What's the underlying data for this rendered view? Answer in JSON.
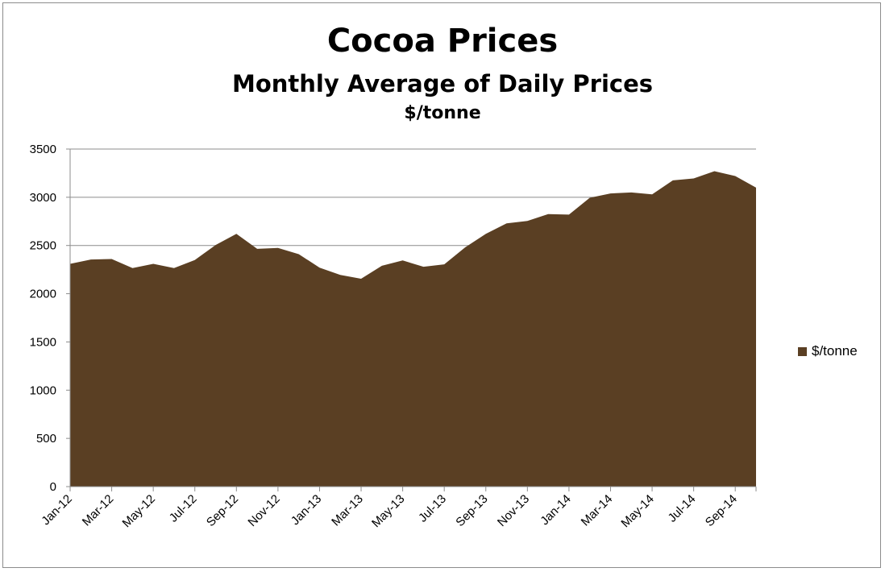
{
  "chart_data": {
    "type": "area",
    "title": "Cocoa Prices",
    "subtitle": "Monthly Average of Daily Prices",
    "subtitle2": "$/tonne",
    "ylim": [
      0,
      3500
    ],
    "yticks": [
      0,
      500,
      1000,
      1500,
      2000,
      2500,
      3000,
      3500
    ],
    "grid": true,
    "legend_position": "right",
    "color": "#5a3f23",
    "x": [
      "Jan-12",
      "Feb-12",
      "Mar-12",
      "Apr-12",
      "May-12",
      "Jun-12",
      "Jul-12",
      "Aug-12",
      "Sep-12",
      "Oct-12",
      "Nov-12",
      "Dec-12",
      "Jan-13",
      "Feb-13",
      "Mar-13",
      "Apr-13",
      "May-13",
      "Jun-13",
      "Jul-13",
      "Aug-13",
      "Sep-13",
      "Oct-13",
      "Nov-13",
      "Dec-13",
      "Jan-14",
      "Feb-14",
      "Mar-14",
      "Apr-14",
      "May-14",
      "Jun-14",
      "Jul-14",
      "Aug-14",
      "Sep-14",
      "Oct-14"
    ],
    "x_tick_labels": [
      "Jan-12",
      "Mar-12",
      "May-12",
      "Jul-12",
      "Sep-12",
      "Nov-12",
      "Jan-13",
      "Mar-13",
      "May-13",
      "Jul-13",
      "Sep-13",
      "Nov-13",
      "Jan-14",
      "Mar-14",
      "May-14",
      "Jul-14",
      "Sep-14"
    ],
    "series": [
      {
        "name": "$/tonne",
        "values": [
          2310,
          2355,
          2360,
          2265,
          2310,
          2265,
          2350,
          2505,
          2620,
          2465,
          2475,
          2410,
          2270,
          2195,
          2155,
          2290,
          2345,
          2280,
          2305,
          2480,
          2620,
          2730,
          2755,
          2825,
          2820,
          2995,
          3040,
          3050,
          3030,
          3175,
          3195,
          3270,
          3220,
          3100
        ]
      }
    ]
  }
}
